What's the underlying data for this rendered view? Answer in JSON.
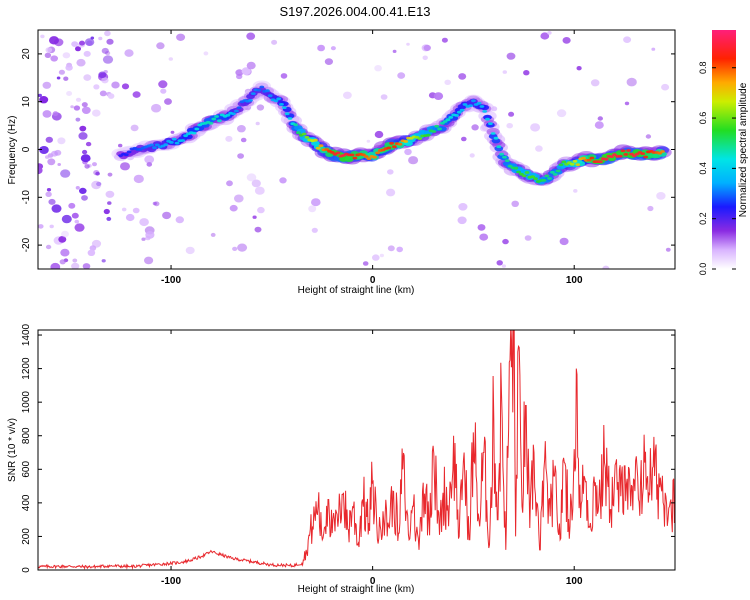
{
  "title": "S197.2026.004.00.41.E13",
  "chart_data": [
    {
      "type": "heatmap",
      "panel": "spectrogram",
      "xlabel": "Height of straight line (km)",
      "ylabel": "Frequency (Hz)",
      "xlim": [
        -166,
        150
      ],
      "ylim": [
        -25,
        25
      ],
      "xticks": [
        -100,
        0,
        100
      ],
      "xtick_labels": [
        "-100",
        "0",
        "100"
      ],
      "yticks": [
        -20,
        -10,
        0,
        10,
        20
      ],
      "ytick_labels": [
        "-20",
        "-10",
        "0",
        "10",
        "20"
      ],
      "ridge": {
        "x": [
          -125,
          -115,
          -105,
          -95,
          -88,
          -80,
          -72,
          -66,
          -60,
          -55,
          -50,
          -45,
          -40,
          -35,
          -30,
          -25,
          -20,
          -15,
          -10,
          -5,
          0,
          5,
          10,
          15,
          20,
          25,
          30,
          35,
          40,
          45,
          50,
          55,
          60,
          65,
          70,
          75,
          80,
          85,
          90,
          95,
          100,
          105,
          110,
          115,
          120,
          125,
          130,
          135,
          140,
          145
        ],
        "y": [
          -1,
          0,
          1,
          2,
          4,
          6,
          7,
          9,
          11,
          13,
          11,
          10,
          6,
          3,
          2,
          0,
          -1,
          -1.5,
          -1.5,
          -1,
          -1.5,
          0,
          1,
          1.5,
          2,
          3,
          4,
          5,
          7,
          9,
          10,
          9,
          3,
          -2,
          -4,
          -5,
          -6,
          -6.5,
          -5,
          -3,
          -3,
          -2,
          -2,
          -2,
          -1.5,
          -0.5,
          -1,
          -1,
          -1,
          -0.5
        ],
        "amplitude": [
          0.25,
          0.3,
          0.35,
          0.4,
          0.45,
          0.5,
          0.45,
          0.3,
          0.35,
          0.3,
          0.35,
          0.4,
          0.45,
          0.6,
          0.7,
          0.8,
          0.9,
          0.95,
          0.9,
          0.85,
          0.8,
          0.85,
          0.9,
          0.8,
          0.7,
          0.6,
          0.55,
          0.5,
          0.45,
          0.4,
          0.35,
          0.4,
          0.45,
          0.5,
          0.55,
          0.6,
          0.6,
          0.55,
          0.5,
          0.6,
          0.7,
          0.8,
          0.9,
          0.95,
          0.95,
          0.9,
          0.95,
          0.9,
          0.85,
          0.8
        ]
      },
      "colorbar": {
        "label": "Normalized spectral amplitude",
        "range": [
          0.0,
          0.95
        ],
        "ticks": [
          0.0,
          0.2,
          0.4,
          0.6,
          0.8
        ],
        "tick_labels": [
          "0.0",
          "0.2",
          "0.4",
          "0.6",
          "0.8"
        ],
        "colormap": "rainbow (white-violet-blue-cyan-green-yellow-red-pink)"
      }
    },
    {
      "type": "line",
      "panel": "snr",
      "xlabel": "Height of straight line (km)",
      "ylabel": "SNR (10 * v/v)",
      "xlim": [
        -166,
        150
      ],
      "ylim": [
        0,
        1430
      ],
      "xticks": [
        -100,
        0,
        100
      ],
      "xtick_labels": [
        "-100",
        "0",
        "100"
      ],
      "yticks": [
        0,
        200,
        400,
        600,
        800,
        1000,
        1200,
        1400
      ],
      "ytick_labels": [
        "0",
        "200",
        "400",
        "600",
        "800",
        "1000",
        "1200",
        "1400"
      ],
      "series": [
        {
          "name": "SNR",
          "color": "#e8282d",
          "x": [
            -166,
            -150,
            -140,
            -130,
            -120,
            -110,
            -100,
            -95,
            -90,
            -85,
            -80,
            -75,
            -70,
            -65,
            -60,
            -55,
            -50,
            -45,
            -40,
            -35,
            -33,
            -30,
            -27,
            -25,
            -22,
            -20,
            -17,
            -15,
            -12,
            -10,
            -7,
            -5,
            -2,
            0,
            3,
            5,
            8,
            10,
            13,
            15,
            18,
            20,
            23,
            25,
            28,
            30,
            33,
            35,
            38,
            40,
            43,
            45,
            48,
            50,
            53,
            55,
            58,
            60,
            62,
            64,
            66,
            68,
            70,
            71,
            72,
            74,
            76,
            78,
            80,
            83,
            85,
            88,
            90,
            93,
            95,
            98,
            100,
            101,
            103,
            105,
            108,
            110,
            113,
            115,
            118,
            120,
            123,
            125,
            128,
            130,
            133,
            135,
            138,
            140,
            143,
            145,
            148,
            150
          ],
          "y": [
            20,
            22,
            18,
            25,
            20,
            30,
            40,
            45,
            60,
            80,
            110,
            90,
            70,
            60,
            50,
            40,
            30,
            30,
            25,
            40,
            120,
            260,
            380,
            180,
            420,
            220,
            310,
            450,
            240,
            380,
            160,
            420,
            280,
            520,
            190,
            350,
            260,
            470,
            220,
            600,
            180,
            380,
            120,
            520,
            300,
            740,
            210,
            460,
            380,
            800,
            200,
            650,
            180,
            820,
            260,
            700,
            150,
            900,
            300,
            1050,
            120,
            1250,
            1430,
            200,
            1300,
            380,
            980,
            250,
            700,
            120,
            600,
            320,
            560,
            180,
            640,
            260,
            720,
            1200,
            310,
            560,
            280,
            500,
            420,
            640,
            360,
            520,
            440,
            620,
            380,
            470,
            520,
            640,
            540,
            560,
            500,
            460,
            420,
            380
          ]
        }
      ]
    }
  ]
}
